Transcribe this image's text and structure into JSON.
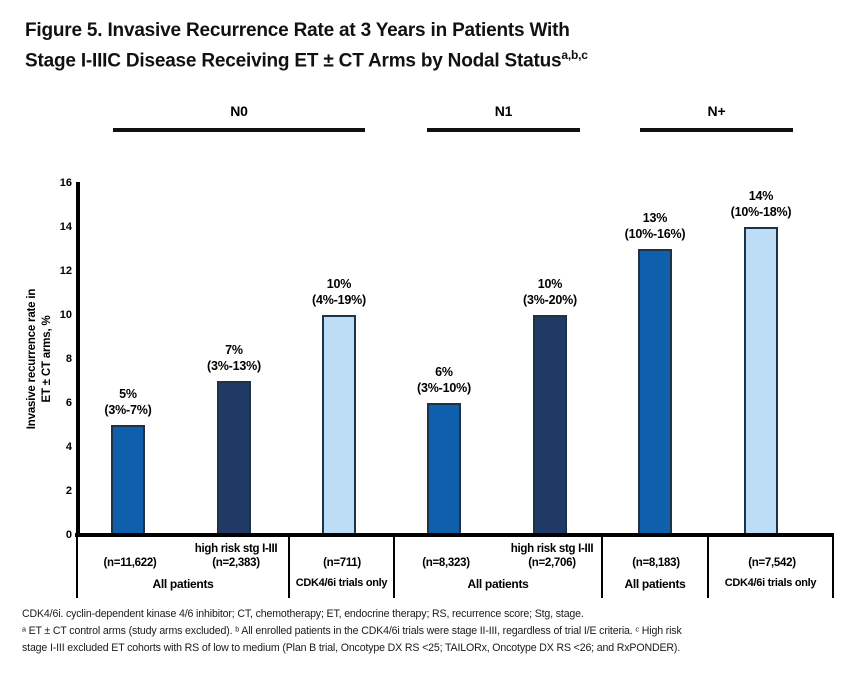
{
  "title": {
    "line1": "Figure 5. Invasive Recurrence Rate at 3 Years in Patients With",
    "line2": "Stage I-IIIC Disease Receiving ET ± CT Arms by Nodal Status",
    "superscript": "a,b,c"
  },
  "colors": {
    "medium_blue": "#0e60ac",
    "dark_navy": "#1f3a64",
    "light_blue": "#bddcf5",
    "bar_border": "#1f3347",
    "axis": "#000000"
  },
  "chart_data": {
    "type": "bar",
    "title": "Invasive recurrence rate at 3 years in patients with stage I-IIIC disease receiving ET ± CT arms by nodal status",
    "ylabel": "Invasive recurrence rate in ET ± CT arms, %",
    "ylabel_line1": "Invasive recurrence rate in",
    "ylabel_line2": "ET ± CT arms, %",
    "ylim": [
      0,
      16
    ],
    "yticks": [
      0,
      2,
      4,
      6,
      8,
      10,
      12,
      14,
      16
    ],
    "grid": false,
    "legend": false,
    "group_headers": [
      {
        "label": "N0"
      },
      {
        "label": "N1"
      },
      {
        "label": "N+"
      }
    ],
    "bars": [
      {
        "group": "N0",
        "category": "All patients",
        "n_label": "(n=11,622)",
        "value": 5,
        "value_label": "5%",
        "ci_label": "(3%-7%)",
        "color_key": "medium_blue"
      },
      {
        "group": "N0",
        "category": "All patients",
        "subgroup_label": "high risk stg I-III",
        "n_label": "(n=2,383)",
        "value": 7,
        "value_label": "7%",
        "ci_label": "(3%-13%)",
        "color_key": "dark_navy"
      },
      {
        "group": "N0",
        "category": "CDK4/6i trials only",
        "n_label": "(n=711)",
        "value": 10,
        "value_label": "10%",
        "ci_label": "(4%-19%)",
        "color_key": "light_blue"
      },
      {
        "group": "N1",
        "category": "All patients",
        "n_label": "(n=8,323)",
        "value": 6,
        "value_label": "6%",
        "ci_label": "(3%-10%)",
        "color_key": "medium_blue"
      },
      {
        "group": "N1",
        "category": "All patients",
        "subgroup_label": "high risk stg I-III",
        "n_label": "(n=2,706)",
        "value": 10,
        "value_label": "10%",
        "ci_label": "(3%-20%)",
        "color_key": "dark_navy"
      },
      {
        "group": "N+",
        "category": "All patients",
        "n_label": "(n=8,183)",
        "value": 13,
        "value_label": "13%",
        "ci_label": "(10%-16%)",
        "color_key": "medium_blue"
      },
      {
        "group": "N+",
        "category": "CDK4/6i trials only",
        "n_label": "(n=7,542)",
        "value": 14,
        "value_label": "14%",
        "ci_label": "(10%-18%)",
        "color_key": "light_blue"
      }
    ],
    "category_boxes": [
      {
        "group": "N0",
        "label": "All patients"
      },
      {
        "group": "N0",
        "label": "CDK4/6i trials only"
      },
      {
        "group": "N1",
        "label": "All patients"
      },
      {
        "group": "N+",
        "label": "All patients"
      },
      {
        "group": "N+",
        "label": "CDK4/6i trials only"
      }
    ]
  },
  "footnotes": {
    "abbreviations": "CDK4/6i. cyclin-dependent kinase 4/6 inhibitor; CT, chemotherapy; ET, endocrine therapy; RS, recurrence score; Stg, stage.",
    "note_line1": "ᵃ ET ± CT control arms (study arms excluded). ᵇ All enrolled patients in the CDK4/6i trials were stage II-III, regardless of trial I/E criteria. ᶜ High risk",
    "note_line2": "stage I-III excluded ET cohorts with RS of low to medium (Plan B trial, Oncotype DX RS <25; TAILORx, Oncotype DX RS <26; and RxPONDER)."
  }
}
